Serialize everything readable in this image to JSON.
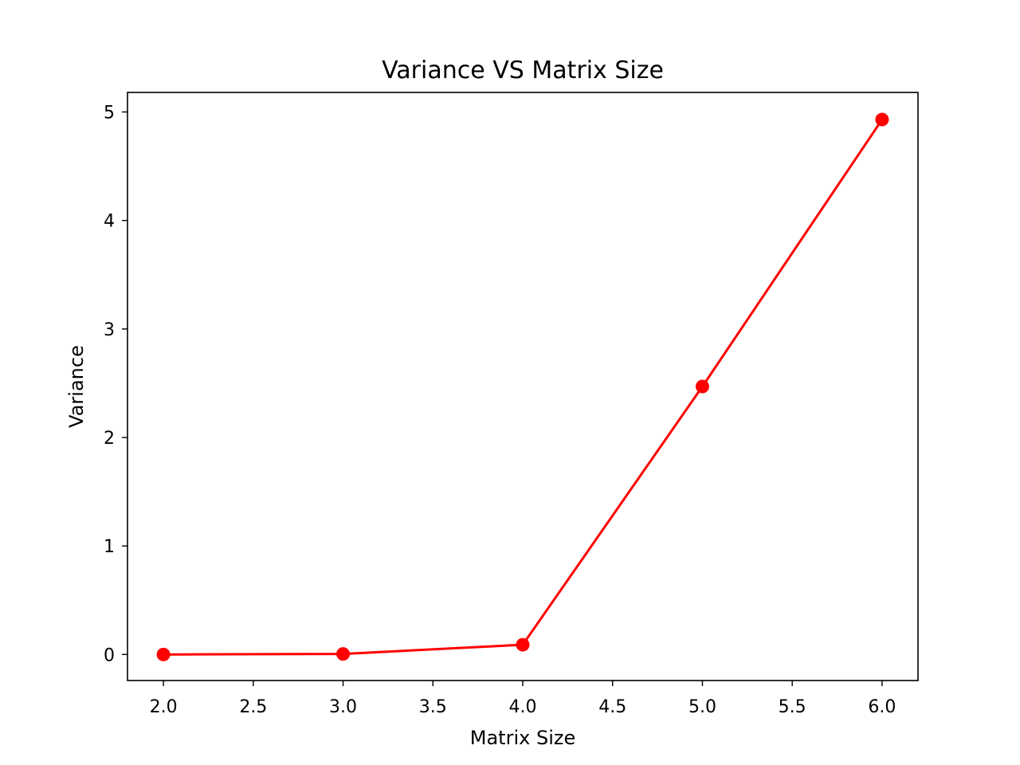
{
  "chart_data": {
    "type": "line",
    "title": "Variance VS Matrix Size",
    "xlabel": "Matrix Size",
    "ylabel": "Variance",
    "xlim": [
      1.8,
      6.2
    ],
    "ylim": [
      -0.24,
      5.18
    ],
    "x_ticks": [
      2.0,
      2.5,
      3.0,
      3.5,
      4.0,
      4.5,
      5.0,
      5.5,
      6.0
    ],
    "x_tick_labels": [
      "2.0",
      "2.5",
      "3.0",
      "3.5",
      "4.0",
      "4.5",
      "5.0",
      "5.5",
      "6.0"
    ],
    "y_ticks": [
      0,
      1,
      2,
      3,
      4,
      5
    ],
    "y_tick_labels": [
      "0",
      "1",
      "2",
      "3",
      "4",
      "5"
    ],
    "grid": false,
    "series": [
      {
        "x": [
          2,
          3,
          4,
          5,
          6
        ],
        "y": [
          0.0,
          0.005,
          0.09,
          2.47,
          4.93
        ],
        "color": "#ff0000",
        "marker": "circle"
      }
    ]
  }
}
